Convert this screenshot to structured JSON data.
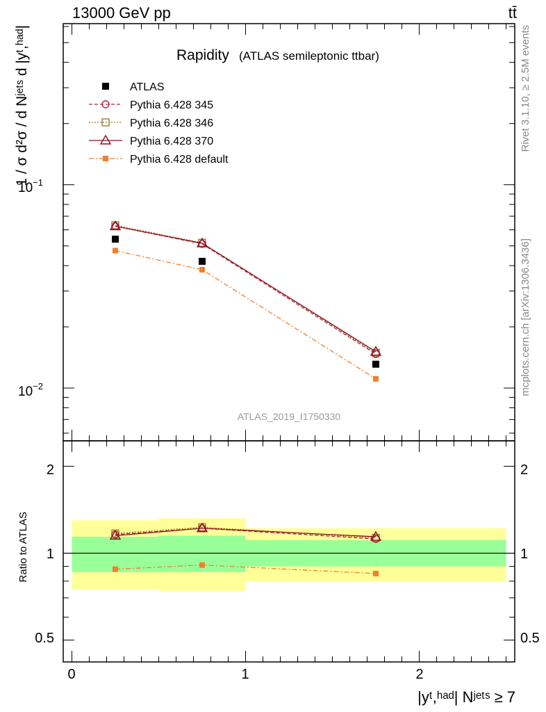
{
  "header": {
    "energy": "13000 GeV pp",
    "process": "tt̄"
  },
  "title": {
    "main": "Rapidity",
    "sub": "(ATLAS semileptonic ttbar)"
  },
  "watermark": "ATLAS_2019_I1750330",
  "side_labels": {
    "rivet": "Rivet 3.1.10, ≥ 2.5M events",
    "mcplots": "mcplots.cern.ch [arXiv:1306.3436]"
  },
  "axes": {
    "ylabel_main": "1 / σ d²σ / d Nʲᵉᵗˢ d |yᵗ,ʰᵃᵈ|",
    "ylabel_ratio": "Ratio to ATLAS",
    "xlabel": "|yᵗ,ʰᵃᵈ| Nʲᵉᵗˢ ≥ 7",
    "main_ticks": [
      {
        "base": "10",
        "exp": "−1",
        "value": 0.1
      },
      {
        "base": "10",
        "exp": "−2",
        "value": 0.01
      }
    ],
    "ratio_ticks": [
      {
        "label": "2",
        "value": 2.0
      },
      {
        "label": "1",
        "value": 1.0
      },
      {
        "label": "0.5",
        "value": 0.5
      }
    ],
    "x_ticks": [
      {
        "label": "0",
        "value": 0
      },
      {
        "label": "1",
        "value": 1
      },
      {
        "label": "2",
        "value": 2
      }
    ]
  },
  "legend": {
    "position": "top-left",
    "items": [
      {
        "label": "ATLAS",
        "color": "#000000",
        "marker": "filled-square",
        "dash": "none"
      },
      {
        "label": "Pythia 6.428 345",
        "color": "#b5213f",
        "marker": "open-circle",
        "dash": "dashed"
      },
      {
        "label": "Pythia 6.428 346",
        "color": "#9c7a2c",
        "marker": "open-square",
        "dash": "dotted"
      },
      {
        "label": "Pythia 6.428 370",
        "color": "#8b1020",
        "marker": "open-triangle",
        "dash": "solid"
      },
      {
        "label": "Pythia 6.428 default",
        "color": "#f27f2c",
        "marker": "filled-square-small",
        "dash": "dashdot"
      }
    ]
  },
  "chart_data": [
    {
      "type": "line",
      "panel": "main",
      "yscale": "log",
      "xlim": [
        -0.05,
        2.55
      ],
      "ylim": [
        0.0055,
        0.62
      ],
      "x": [
        0.25,
        0.75,
        1.75
      ],
      "bin_edges": [
        0,
        0.5,
        1.0,
        2.5
      ],
      "series": [
        {
          "name": "ATLAS",
          "values": [
            0.054,
            0.042,
            0.0131
          ]
        },
        {
          "name": "Pythia 6.428 345",
          "values": [
            0.0625,
            0.0512,
            0.0147
          ]
        },
        {
          "name": "Pythia 6.428 346",
          "values": [
            0.0632,
            0.0518,
            0.0149
          ]
        },
        {
          "name": "Pythia 6.428 370",
          "values": [
            0.0625,
            0.0515,
            0.0151
          ]
        },
        {
          "name": "Pythia 6.428 default",
          "values": [
            0.0474,
            0.0382,
            0.0111
          ]
        }
      ]
    },
    {
      "type": "line",
      "panel": "ratio",
      "yscale": "log",
      "xlim": [
        -0.05,
        2.55
      ],
      "ylim": [
        0.42,
        2.45
      ],
      "x": [
        0.25,
        0.75,
        1.75
      ],
      "series": [
        {
          "name": "Pythia 6.428 345",
          "values": [
            1.16,
            1.22,
            1.12
          ]
        },
        {
          "name": "Pythia 6.428 346",
          "values": [
            1.17,
            1.23,
            1.13
          ]
        },
        {
          "name": "Pythia 6.428 370",
          "values": [
            1.15,
            1.22,
            1.14
          ]
        },
        {
          "name": "Pythia 6.428 default",
          "values": [
            0.88,
            0.91,
            0.85
          ]
        }
      ],
      "bands": [
        {
          "name": "stat",
          "color": "#99ff99",
          "low": [
            0.86,
            0.86,
            0.9
          ],
          "high": [
            1.14,
            1.15,
            1.11
          ]
        },
        {
          "name": "total",
          "color": "#ffff99",
          "low": [
            0.75,
            0.74,
            0.8
          ],
          "high": [
            1.3,
            1.32,
            1.22
          ]
        }
      ]
    }
  ]
}
